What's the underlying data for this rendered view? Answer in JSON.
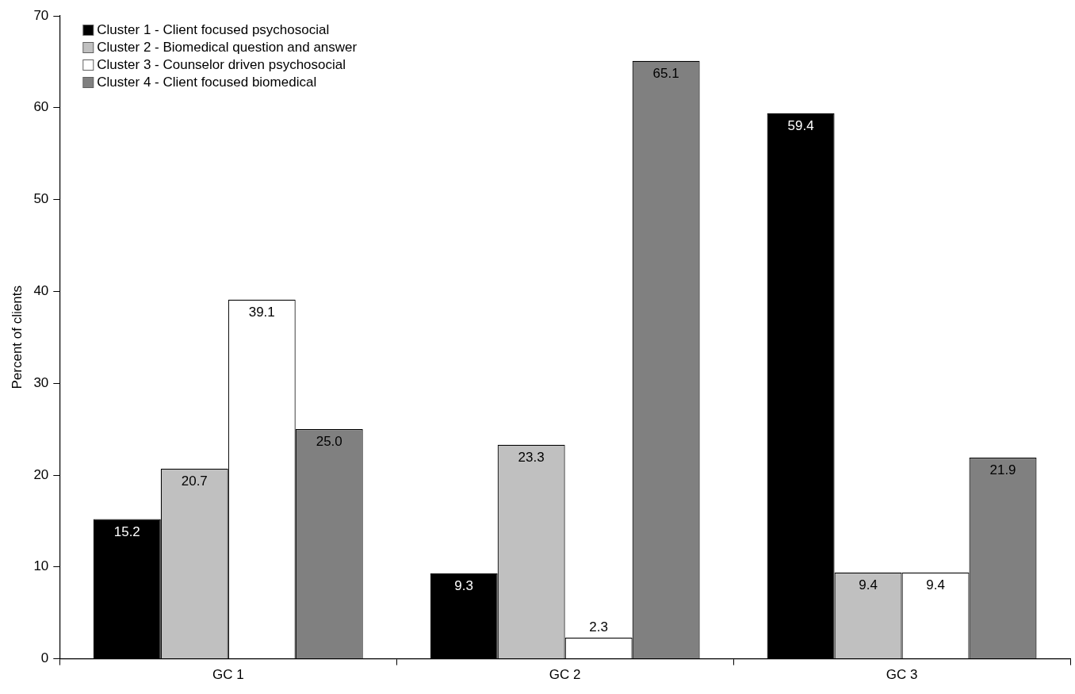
{
  "chart_data": {
    "type": "bar",
    "ylabel": "Percent of clients",
    "categories": [
      "GC 1",
      "GC 2",
      "GC 3"
    ],
    "series": [
      {
        "name": "Cluster 1 - Client focused psychosocial",
        "color": "#000000",
        "values": [
          15.2,
          9.3,
          59.4
        ],
        "value_labels": [
          "15.2",
          "9.3",
          "59.4"
        ]
      },
      {
        "name": "Cluster 2 - Biomedical question and answer",
        "color": "#c0c0c0",
        "values": [
          20.7,
          23.3,
          9.4
        ],
        "value_labels": [
          "20.7",
          "23.3",
          "9.4"
        ]
      },
      {
        "name": "Cluster 3 - Counselor driven psychosocial",
        "color": "#ffffff",
        "values": [
          39.1,
          2.3,
          9.4
        ],
        "value_labels": [
          "39.1",
          "2.3",
          "9.4"
        ]
      },
      {
        "name": "Cluster 4 - Client focused biomedical",
        "color": "#808080",
        "values": [
          25.0,
          65.1,
          21.9
        ],
        "value_labels": [
          "25.0",
          "65.1",
          "21.9"
        ]
      }
    ],
    "ylim": [
      0,
      70
    ],
    "yticks": [
      0,
      10,
      20,
      30,
      40,
      50,
      60,
      70
    ],
    "grid": false,
    "legend": "top left"
  }
}
